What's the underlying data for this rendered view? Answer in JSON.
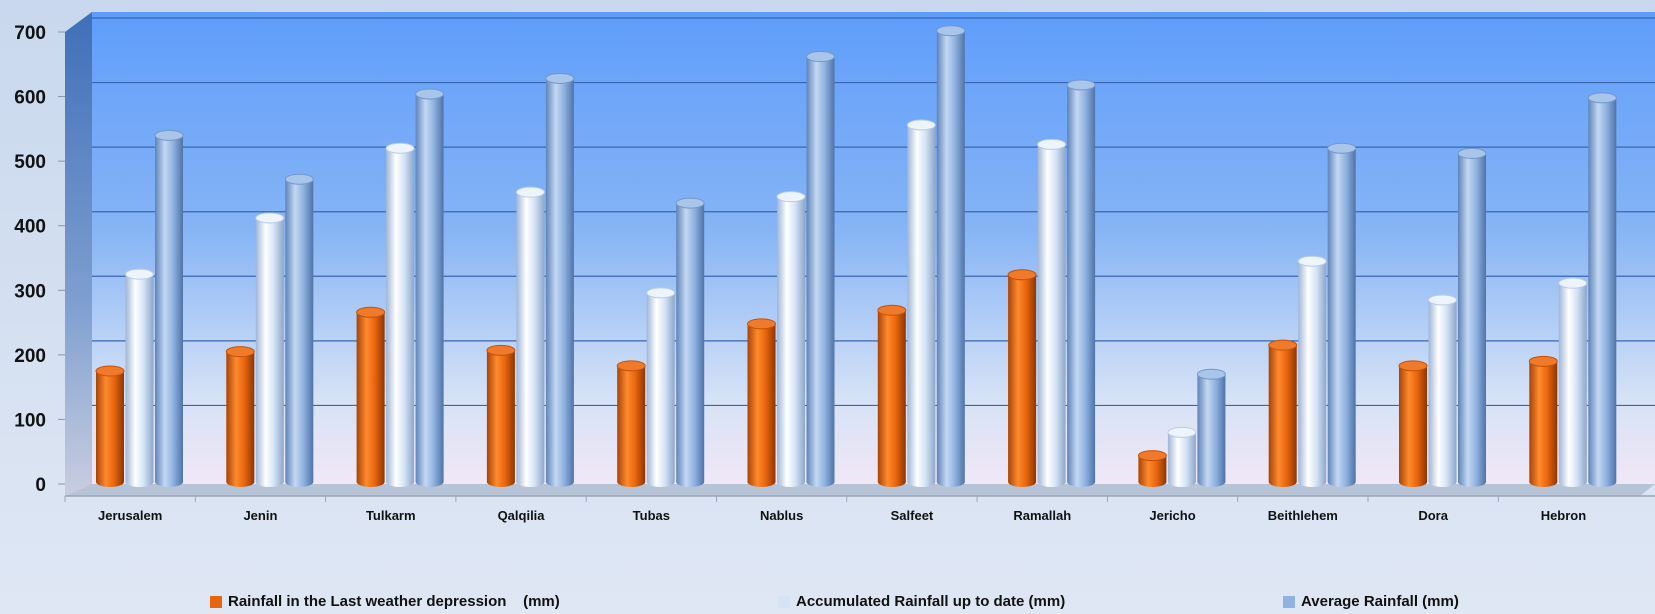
{
  "chart_data": {
    "type": "bar",
    "title": "",
    "xlabel": "",
    "ylabel": "",
    "ylim": [
      0,
      700
    ],
    "y_ticks": [
      "0",
      "100",
      "200",
      "300",
      "400",
      "500",
      "600",
      "700"
    ],
    "grid": true,
    "legend_position": "bottom",
    "categories": [
      "Jerusalem",
      "Jenin",
      "Tulkarm",
      "Qalqilia",
      "Tubas",
      "Nablus",
      "Salfeet",
      "Ramallah",
      "Jericho",
      "Beithlehem",
      "Dora",
      "Hebron"
    ],
    "series": [
      {
        "name": "Rainfall in the Last weather depression    (mm)",
        "color": "#e8650d",
        "values": [
          175,
          205,
          266,
          207,
          183,
          248,
          269,
          324,
          44,
          215,
          183,
          190
        ]
      },
      {
        "name": "Accumulated Rainfall up to date (mm)",
        "color": "#d4e3f6",
        "values": [
          325,
          412,
          520,
          452,
          296,
          445,
          556,
          526,
          80,
          345,
          285,
          311
        ]
      },
      {
        "name": "Average Rainfall (mm)",
        "color": "#8fb2e0",
        "values": [
          540,
          472,
          604,
          628,
          435,
          662,
          702,
          618,
          170,
          520,
          512,
          598
        ]
      }
    ]
  }
}
